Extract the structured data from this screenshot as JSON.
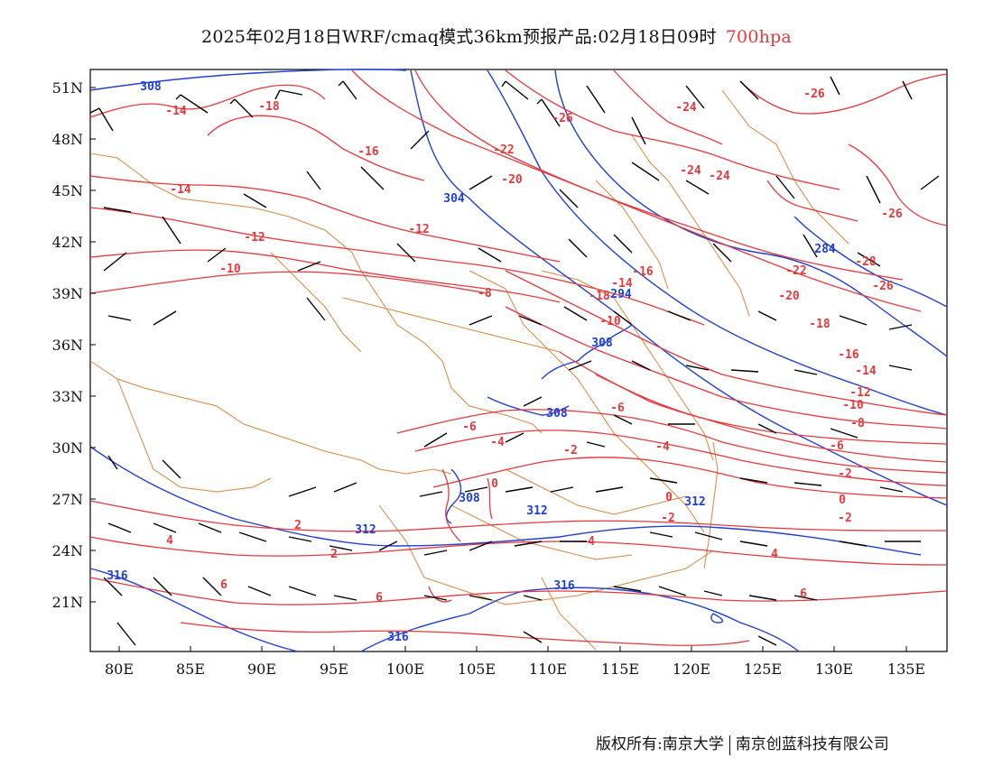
{
  "title": {
    "main": "2025年02月18日WRF/cmaq模式36km预报产品:02月18日09时",
    "level": "700hpa"
  },
  "colors": {
    "temperature": "#e8383c",
    "geopotential": "#1f3fd6",
    "borders": "#d9843a",
    "wind": "#000000",
    "level_text": "#e8383c"
  },
  "axes": {
    "lat_labels": [
      "51N",
      "48N",
      "45N",
      "42N",
      "39N",
      "36N",
      "33N",
      "30N",
      "27N",
      "24N",
      "21N"
    ],
    "lon_labels": [
      "80E",
      "85E",
      "90E",
      "95E",
      "100E",
      "105E",
      "110E",
      "115E",
      "120E",
      "125E",
      "130E",
      "135E"
    ],
    "lat_range": [
      18,
      52
    ],
    "lon_range": [
      78,
      138
    ]
  },
  "temperature_labels": [
    "-14",
    "-18",
    "-16",
    "-14",
    "-12",
    "-10",
    "-8",
    "-22",
    "-20",
    "-26",
    "-24",
    "-24",
    "-24",
    "-26",
    "-26",
    "-12",
    "-16",
    "-18",
    "-14",
    "-10",
    "-22",
    "-20",
    "-18",
    "-28",
    "-26",
    "-16",
    "-14",
    "-12",
    "-10",
    "-8",
    "-6",
    "-6",
    "-4",
    "-2",
    "-6",
    "-4",
    "-2",
    "0",
    "-2",
    "0",
    "-2",
    "0",
    "2",
    "4",
    "2",
    "4",
    "6",
    "6",
    "4",
    "6"
  ],
  "geopotential_labels": [
    "308",
    "304",
    "284",
    "294",
    "308",
    "308",
    "308",
    "312",
    "312",
    "312",
    "316",
    "316",
    "316"
  ],
  "footer": {
    "left": "版权所有:南京大学",
    "right": "南京创蓝科技有限公司"
  }
}
